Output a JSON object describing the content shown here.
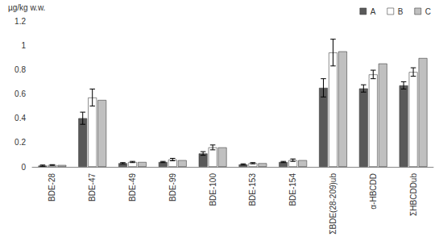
{
  "chart_data": {
    "type": "bar",
    "y_label": "µg/kg w.w.",
    "categories": [
      "BDE-28",
      "BDE-47",
      "BDE-49",
      "BDE-99",
      "BDE-100",
      "BDE-153",
      "BDE-154",
      "ΣBDE(28-209)ub",
      "α-HBCDD",
      "ΣHBCDDub"
    ],
    "series": [
      {
        "name": "A",
        "color": "#595959",
        "values": [
          0.01,
          0.4,
          0.03,
          0.04,
          0.11,
          0.02,
          0.04,
          0.65,
          0.645,
          0.67
        ],
        "errors": [
          0.005,
          0.05,
          0.005,
          0.005,
          0.015,
          0.005,
          0.005,
          0.075,
          0.03,
          0.03
        ]
      },
      {
        "name": "B",
        "color": "#ffffff",
        "values": [
          0.015,
          0.57,
          0.04,
          0.06,
          0.16,
          0.03,
          0.055,
          0.94,
          0.76,
          0.78
        ],
        "errors": [
          0.003,
          0.07,
          0.005,
          0.01,
          0.02,
          0.005,
          0.01,
          0.11,
          0.035,
          0.035
        ]
      },
      {
        "name": "C",
        "color": "#c0c0c0",
        "values": [
          0.015,
          0.55,
          0.04,
          0.055,
          0.16,
          0.03,
          0.055,
          0.95,
          0.85,
          0.895
        ]
      }
    ],
    "ylim": [
      0,
      1.2
    ],
    "yticks": [
      0,
      0.2,
      0.4,
      0.6,
      0.8,
      1,
      1.2
    ],
    "grid": false,
    "legend": "top-right"
  }
}
